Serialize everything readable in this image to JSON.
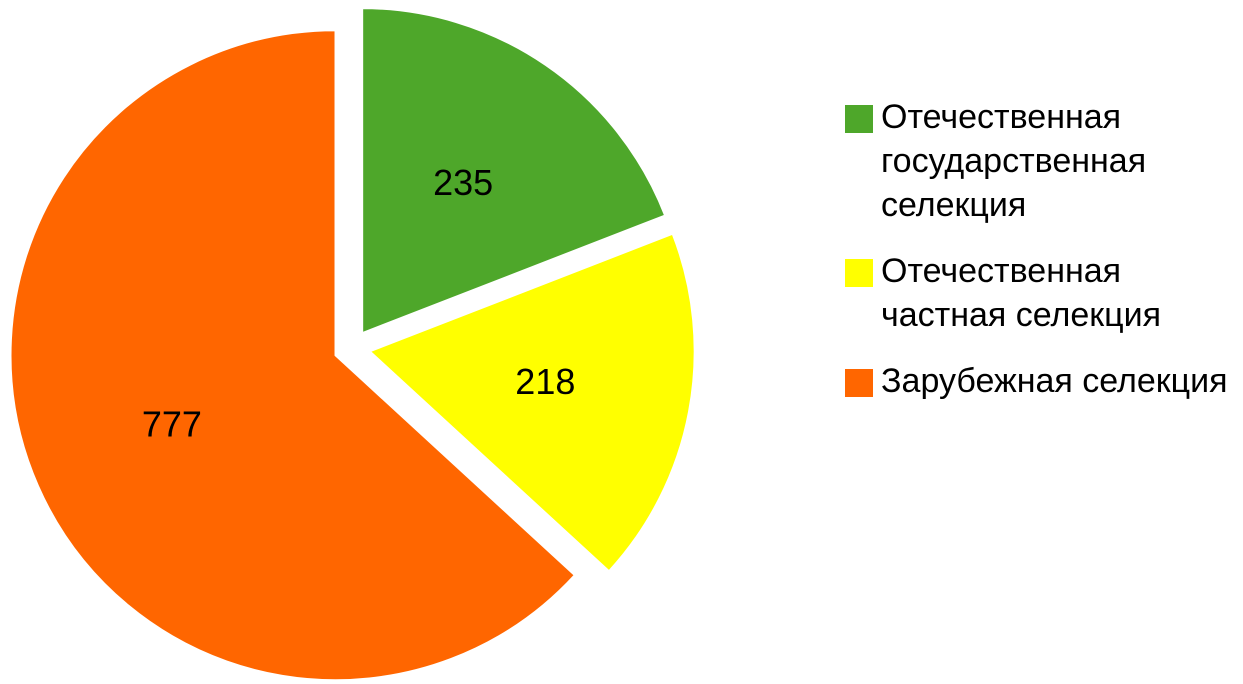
{
  "chart_data": {
    "type": "pie",
    "categories": [
      "Отечественная государственная селекция",
      "Отечественная частная селекция",
      "Зарубежная селекция"
    ],
    "values": [
      235,
      218,
      777
    ],
    "colors": [
      "#4ea72a",
      "#ffff00",
      "#ff6600"
    ],
    "legend": "right"
  }
}
